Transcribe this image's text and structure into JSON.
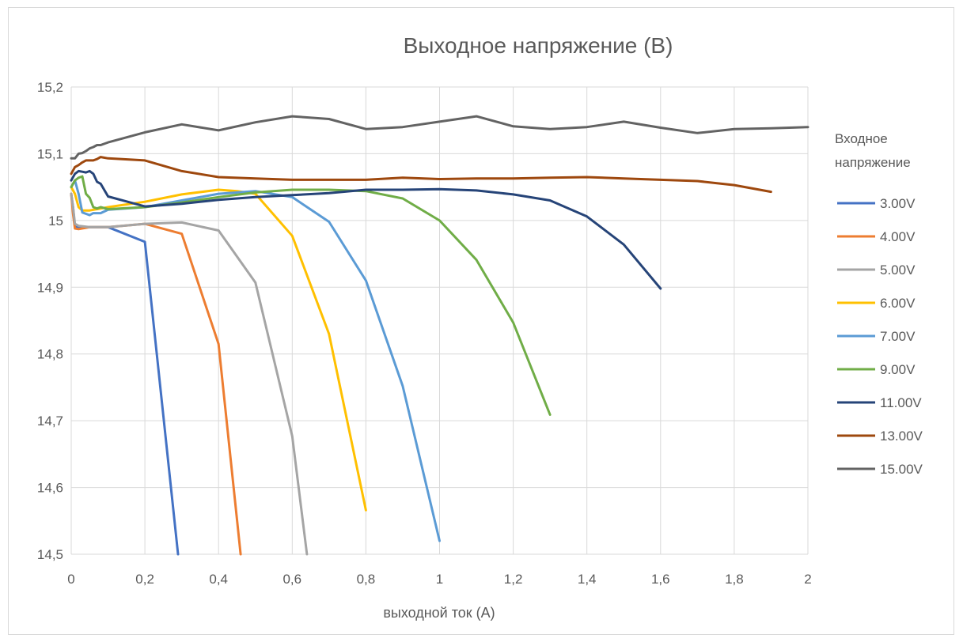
{
  "chart_data": {
    "type": "line",
    "title": "Выходное напряжение (В)",
    "xlabel": "выходной ток (А)",
    "ylabel": "",
    "xlim": [
      0,
      2
    ],
    "ylim": [
      14.5,
      15.2
    ],
    "x_ticks": [
      "0",
      "0,2",
      "0,4",
      "0,6",
      "0,8",
      "1",
      "1,2",
      "1,4",
      "1,6",
      "1,8",
      "2"
    ],
    "y_ticks": [
      "14,5",
      "14,6",
      "14,7",
      "14,8",
      "14,9",
      "15",
      "15,1",
      "15,2"
    ],
    "grid": true,
    "legend": {
      "title_lines": [
        "Входное",
        "напряжение"
      ],
      "placement": "right"
    },
    "series": [
      {
        "name": "3.00V",
        "color": "#4472C4",
        "x": [
          0,
          0.005,
          0.01,
          0.02,
          0.03,
          0.05,
          0.07,
          0.1,
          0.2,
          0.29
        ],
        "y": [
          15.04,
          15.02,
          14.99,
          14.99,
          14.99,
          14.99,
          14.99,
          14.99,
          14.968,
          14.5
        ]
      },
      {
        "name": "4.00V",
        "color": "#ED7D31",
        "x": [
          0,
          0.005,
          0.01,
          0.02,
          0.05,
          0.1,
          0.2,
          0.3,
          0.4,
          0.46
        ],
        "y": [
          15.04,
          15.01,
          14.988,
          14.987,
          14.99,
          14.99,
          14.995,
          14.98,
          14.815,
          14.5
        ]
      },
      {
        "name": "5.00V",
        "color": "#A5A5A5",
        "x": [
          0,
          0.005,
          0.01,
          0.02,
          0.05,
          0.1,
          0.2,
          0.3,
          0.4,
          0.5,
          0.6,
          0.64
        ],
        "y": [
          15.04,
          15.02,
          14.995,
          14.992,
          14.99,
          14.99,
          14.995,
          14.997,
          14.985,
          14.907,
          14.677,
          14.5
        ]
      },
      {
        "name": "6.00V",
        "color": "#FFC000",
        "x": [
          0,
          0.01,
          0.02,
          0.03,
          0.05,
          0.1,
          0.2,
          0.3,
          0.4,
          0.45,
          0.5,
          0.6,
          0.7,
          0.8
        ],
        "y": [
          15.05,
          15.04,
          15.02,
          15.015,
          15.015,
          15.02,
          15.028,
          15.039,
          15.046,
          15.044,
          15.04,
          14.977,
          14.83,
          14.566
        ]
      },
      {
        "name": "7.00V",
        "color": "#5B9BD5",
        "x": [
          0,
          0.01,
          0.02,
          0.03,
          0.05,
          0.06,
          0.08,
          0.1,
          0.2,
          0.3,
          0.4,
          0.5,
          0.6,
          0.7,
          0.8,
          0.9,
          1.0
        ],
        "y": [
          15.05,
          15.06,
          15.04,
          15.012,
          15.008,
          15.011,
          15.011,
          15.016,
          15.02,
          15.03,
          15.04,
          15.044,
          15.035,
          14.998,
          14.91,
          14.752,
          14.52
        ]
      },
      {
        "name": "9.00V",
        "color": "#70AD47",
        "x": [
          0,
          0.01,
          0.02,
          0.03,
          0.04,
          0.05,
          0.06,
          0.07,
          0.08,
          0.1,
          0.2,
          0.3,
          0.4,
          0.5,
          0.6,
          0.7,
          0.8,
          0.9,
          1.0,
          1.1,
          1.2,
          1.3
        ],
        "y": [
          15.05,
          15.06,
          15.064,
          15.066,
          15.04,
          15.034,
          15.02,
          15.018,
          15.02,
          15.017,
          15.02,
          15.027,
          15.035,
          15.042,
          15.046,
          15.046,
          15.044,
          15.033,
          15.0,
          14.941,
          14.847,
          14.709
        ]
      },
      {
        "name": "11.00V",
        "color": "#264478",
        "x": [
          0,
          0.01,
          0.02,
          0.03,
          0.04,
          0.05,
          0.06,
          0.07,
          0.08,
          0.1,
          0.2,
          0.3,
          0.4,
          0.5,
          0.6,
          0.7,
          0.8,
          0.9,
          1.0,
          1.1,
          1.2,
          1.3,
          1.4,
          1.5,
          1.6
        ],
        "y": [
          15.06,
          15.07,
          15.074,
          15.073,
          15.072,
          15.074,
          15.07,
          15.058,
          15.055,
          15.036,
          15.021,
          15.025,
          15.031,
          15.035,
          15.038,
          15.041,
          15.046,
          15.046,
          15.047,
          15.045,
          15.039,
          15.03,
          15.006,
          14.964,
          14.898
        ]
      },
      {
        "name": "13.00V",
        "color": "#9E480E",
        "x": [
          0,
          0.01,
          0.02,
          0.03,
          0.04,
          0.05,
          0.06,
          0.07,
          0.08,
          0.1,
          0.2,
          0.3,
          0.4,
          0.5,
          0.6,
          0.7,
          0.8,
          0.9,
          1.0,
          1.1,
          1.2,
          1.3,
          1.4,
          1.5,
          1.6,
          1.7,
          1.8,
          1.9
        ],
        "y": [
          15.07,
          15.08,
          15.083,
          15.087,
          15.09,
          15.09,
          15.09,
          15.092,
          15.095,
          15.093,
          15.09,
          15.074,
          15.065,
          15.063,
          15.061,
          15.061,
          15.061,
          15.064,
          15.062,
          15.063,
          15.063,
          15.064,
          15.065,
          15.063,
          15.061,
          15.059,
          15.053,
          15.043
        ]
      },
      {
        "name": "15.00V",
        "color": "#636363",
        "x": [
          0,
          0.01,
          0.02,
          0.03,
          0.04,
          0.05,
          0.06,
          0.07,
          0.08,
          0.1,
          0.2,
          0.3,
          0.4,
          0.5,
          0.6,
          0.7,
          0.8,
          0.9,
          1.0,
          1.1,
          1.2,
          1.3,
          1.4,
          1.5,
          1.6,
          1.7,
          1.8,
          1.9,
          2.0
        ],
        "y": [
          15.093,
          15.093,
          15.1,
          15.101,
          15.104,
          15.108,
          15.11,
          15.113,
          15.113,
          15.117,
          15.132,
          15.144,
          15.135,
          15.147,
          15.156,
          15.152,
          15.137,
          15.14,
          15.148,
          15.156,
          15.141,
          15.137,
          15.14,
          15.148,
          15.139,
          15.131,
          15.137,
          15.138,
          15.14
        ]
      }
    ]
  }
}
